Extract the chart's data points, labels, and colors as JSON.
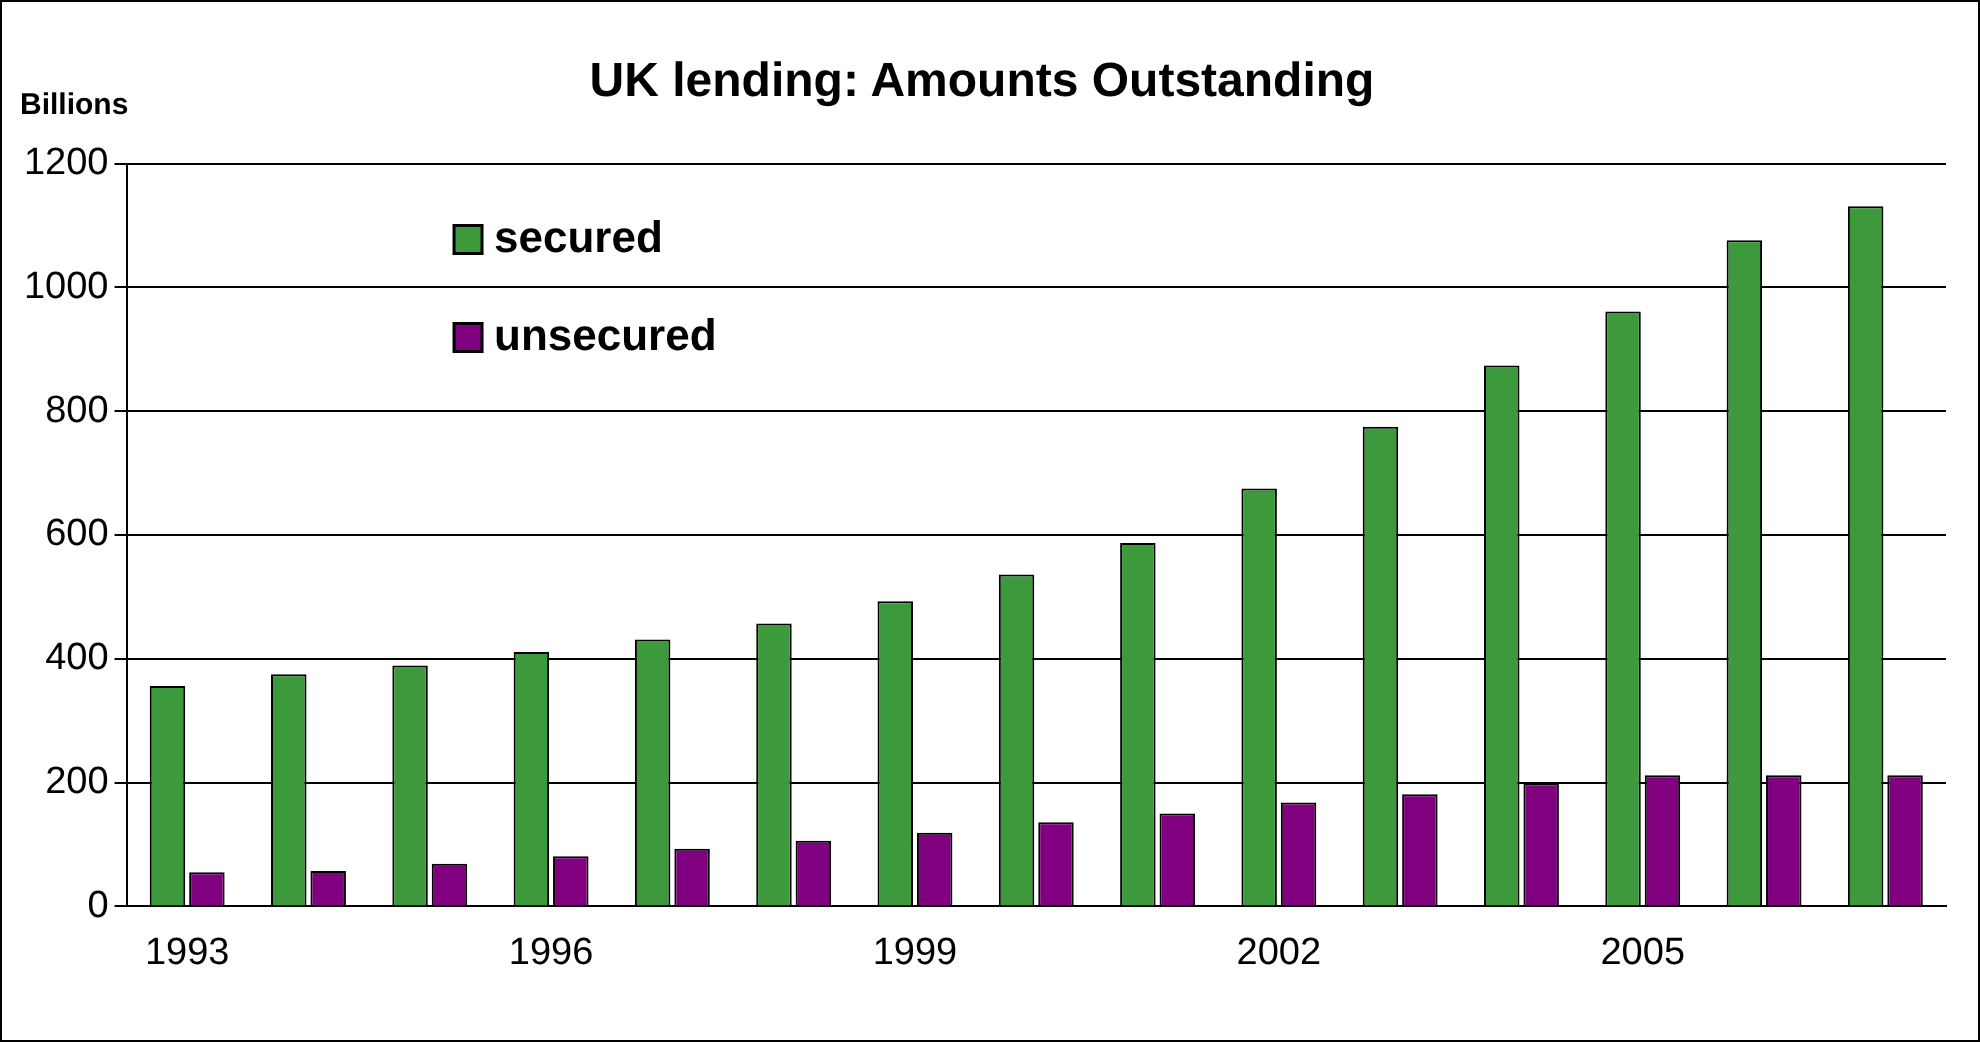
{
  "chart_data": {
    "type": "bar",
    "title": "UK lending: Amounts Outstanding",
    "ylabel": "Billions",
    "categories": [
      "1993",
      null,
      null,
      "1996",
      null,
      null,
      "1999",
      null,
      null,
      "2002",
      null,
      null,
      "2005",
      null,
      null
    ],
    "series": [
      {
        "name": "secured",
        "color": "#3c9a3c",
        "values": [
          356,
          375,
          389,
          411,
          431,
          457,
          493,
          536,
          587,
          675,
          775,
          874,
          961,
          1076,
          1131
        ]
      },
      {
        "name": "unsecured",
        "color": "#800080",
        "values": [
          55,
          57,
          69,
          81,
          93,
          106,
          119,
          136,
          150,
          168,
          181,
          199,
          212,
          212,
          212
        ]
      }
    ],
    "ylim": [
      0,
      1200
    ],
    "yticks": [
      0,
      200,
      400,
      600,
      800,
      1000,
      1200
    ],
    "grid": "y",
    "legend": "top left"
  }
}
